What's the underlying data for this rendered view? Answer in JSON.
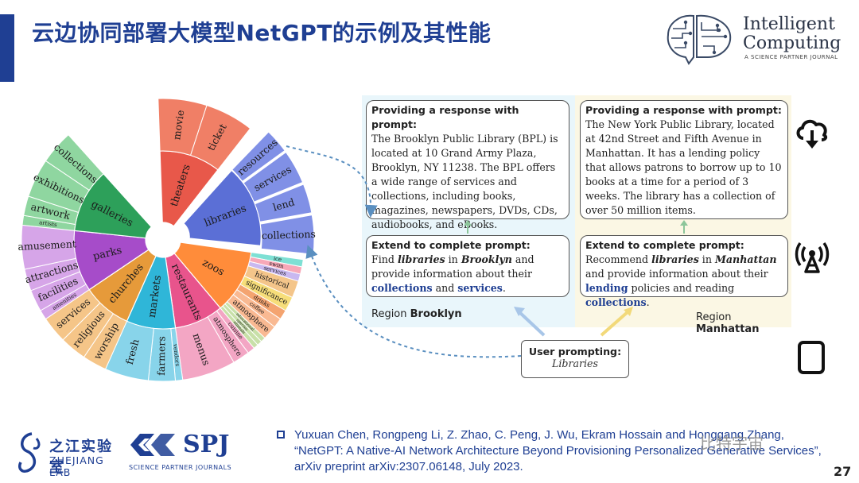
{
  "title": "云边协同部署大模型NetGPT的示例及其性能",
  "journal_logo": {
    "line1": "Intelligent",
    "line2": "Computing",
    "tagline": "A SCIENCE PARTNER JOURNAL"
  },
  "sunburst": {
    "inner": [
      {
        "label": "theaters",
        "color": "#e8584a"
      },
      {
        "label": "libraries",
        "color": "#5b6fd6"
      },
      {
        "label": "zoos",
        "color": "#ff8c3a"
      },
      {
        "label": "restaurants",
        "color": "#e8548c"
      },
      {
        "label": "markets",
        "color": "#2fb6d8"
      },
      {
        "label": "churches",
        "color": "#e69a3a"
      },
      {
        "label": "parks",
        "color": "#a64cc9"
      },
      {
        "label": "galleries",
        "color": "#2da05a"
      }
    ],
    "outer": [
      {
        "label": "movie",
        "color": "#f07f66"
      },
      {
        "label": "ticket",
        "color": "#f07f66"
      },
      {
        "label": "resources",
        "color": "#8090e6"
      },
      {
        "label": "services",
        "color": "#8090e6"
      },
      {
        "label": "lend",
        "color": "#8090e6"
      },
      {
        "label": "collections",
        "color": "#8090e6"
      },
      {
        "label": "ice",
        "color": "#7ee0d4"
      },
      {
        "label": "swim",
        "color": "#f7a8b8"
      },
      {
        "label": "services",
        "color": "#c9b8f0"
      },
      {
        "label": "historical",
        "color": "#f4c58a"
      },
      {
        "label": "significance",
        "color": "#f7de7a"
      },
      {
        "label": "drinks",
        "color": "#f4a470"
      },
      {
        "label": "coffee",
        "color": "#f9b992"
      },
      {
        "label": "atmosphere",
        "color": "#f9b992"
      },
      {
        "label": "educational",
        "color": "#c8e0a8"
      },
      {
        "label": "species",
        "color": "#c8e0a8"
      },
      {
        "label": "animals",
        "color": "#c8e0a8"
      },
      {
        "label": "cuisine",
        "color": "#f3a6c4"
      },
      {
        "label": "atmosphere",
        "color": "#f3a6c4"
      },
      {
        "label": "menus",
        "color": "#f3a6c4"
      },
      {
        "label": "vendors",
        "color": "#88d4ea"
      },
      {
        "label": "farmers",
        "color": "#88d4ea"
      },
      {
        "label": "fresh",
        "color": "#88d4ea"
      },
      {
        "label": "worship",
        "color": "#f5c588"
      },
      {
        "label": "religious",
        "color": "#f5c588"
      },
      {
        "label": "services",
        "color": "#f5c588"
      },
      {
        "label": "amenities",
        "color": "#d6a5e8"
      },
      {
        "label": "facilities",
        "color": "#d6a5e8"
      },
      {
        "label": "attractions",
        "color": "#d6a5e8"
      },
      {
        "label": "amusement",
        "color": "#d6a5e8"
      },
      {
        "label": "artists",
        "color": "#8fd6a0"
      },
      {
        "label": "artwork",
        "color": "#8fd6a0"
      },
      {
        "label": "exhibitions",
        "color": "#8fd6a0"
      },
      {
        "label": "collections",
        "color": "#8fd6a0"
      }
    ]
  },
  "brooklyn": {
    "response_heading": "Providing a response with prompt:",
    "response_text": "The Brooklyn Public Library (BPL) is located at 10 Grand Army Plaza, Brooklyn, NY 11238. The BPL offers a wide range of services and collections, including books, magazines, newspapers, DVDs, CDs, audiobooks, and eBooks.",
    "extend_heading": "Extend to complete prompt:",
    "extend_parts": [
      "Find ",
      "libraries",
      " in ",
      "Brooklyn",
      " and provide information about their ",
      "collections",
      " and ",
      "services",
      "."
    ],
    "region_prefix": "Region ",
    "region_name": "Brooklyn"
  },
  "manhattan": {
    "response_heading": "Providing a response with prompt:",
    "response_text": "The New York Public Library, located at 42nd Street and Fifth Avenue in Manhattan. It has a lending policy that allows patrons to borrow up to 10 books at a time for a period of 3 weeks. The library has a collection of over 50 million items.",
    "extend_heading": "Extend to complete prompt:",
    "extend_parts": [
      "Recommend ",
      "libraries",
      " in ",
      "Manhattan",
      " and provide information about their ",
      "lending",
      " policies and reading ",
      "collections",
      "."
    ],
    "region_prefix": "Region ",
    "region_name": "Manhattan"
  },
  "user": {
    "heading": "User prompting:",
    "value": "Libraries"
  },
  "icons": [
    "cloud-download-icon",
    "antenna-tower-icon",
    "tablet-icon"
  ],
  "reference": "Yuxuan Chen, Rongpeng Li, Z. Zhao, C. Peng, J. Wu, Ekram Hossain and Honggang Zhang, “NetGPT: A Native-AI Network Architecture Beyond Provisioning Personalized Generative Services”, arXiv preprint arXiv:2307.06148, July 2023.",
  "page_number": "27",
  "zhejiang_logo": {
    "cn": "之江实验室",
    "en": "ZHEJIANG LAB"
  },
  "spj_logo": {
    "mark": "SPJ",
    "tagline": "SCIENCE PARTNER JOURNALS"
  },
  "watermark": "比特宇宙"
}
